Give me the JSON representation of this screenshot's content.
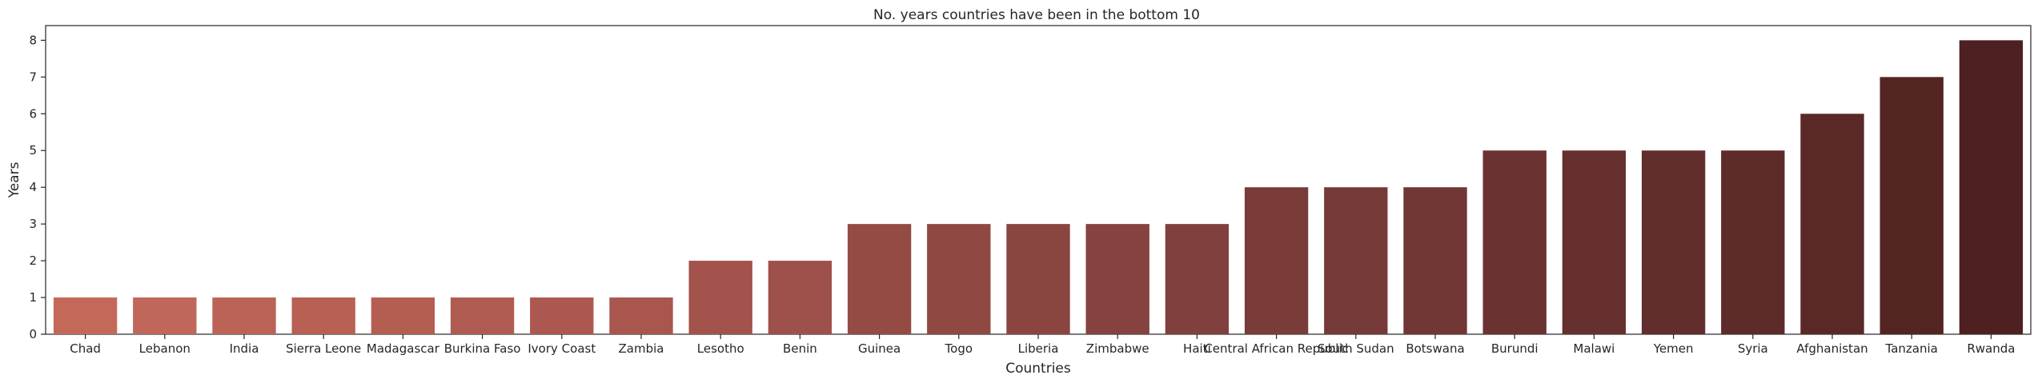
{
  "chart_data": {
    "type": "bar",
    "title": "No. years countries have been in the bottom 10",
    "xlabel": "Countries",
    "ylabel": "Years",
    "ylim": [
      0,
      8.4
    ],
    "yticks": [
      0,
      1,
      2,
      3,
      4,
      5,
      6,
      7,
      8
    ],
    "grid": false,
    "categories": [
      "Chad",
      "Lebanon",
      "India",
      "Sierra Leone",
      "Madagascar",
      "Burkina Faso",
      "Ivory Coast",
      "Zambia",
      "Lesotho",
      "Benin",
      "Guinea",
      "Togo",
      "Liberia",
      "Zimbabwe",
      "Haiti",
      "Central African Republic",
      "South Sudan",
      "Botswana",
      "Burundi",
      "Malawi",
      "Yemen",
      "Syria",
      "Afghanistan",
      "Tanzania",
      "Rwanda"
    ],
    "values": [
      1,
      1,
      1,
      1,
      1,
      1,
      1,
      1,
      2,
      2,
      3,
      3,
      3,
      3,
      3,
      4,
      4,
      4,
      5,
      5,
      5,
      5,
      6,
      7,
      8
    ],
    "colors": [
      "#c4695a",
      "#c0665a",
      "#bc6357",
      "#b86054",
      "#b45e52",
      "#b05b51",
      "#ac5850",
      "#a8564e",
      "#a3534c",
      "#9e504a",
      "#944b44",
      "#8f4842",
      "#8a4541",
      "#85423f",
      "#80403d",
      "#793c38",
      "#753a37",
      "#713735",
      "#6a3331",
      "#66302f",
      "#622e2d",
      "#5d2b2a",
      "#592827",
      "#542423",
      "#4e2021"
    ]
  }
}
